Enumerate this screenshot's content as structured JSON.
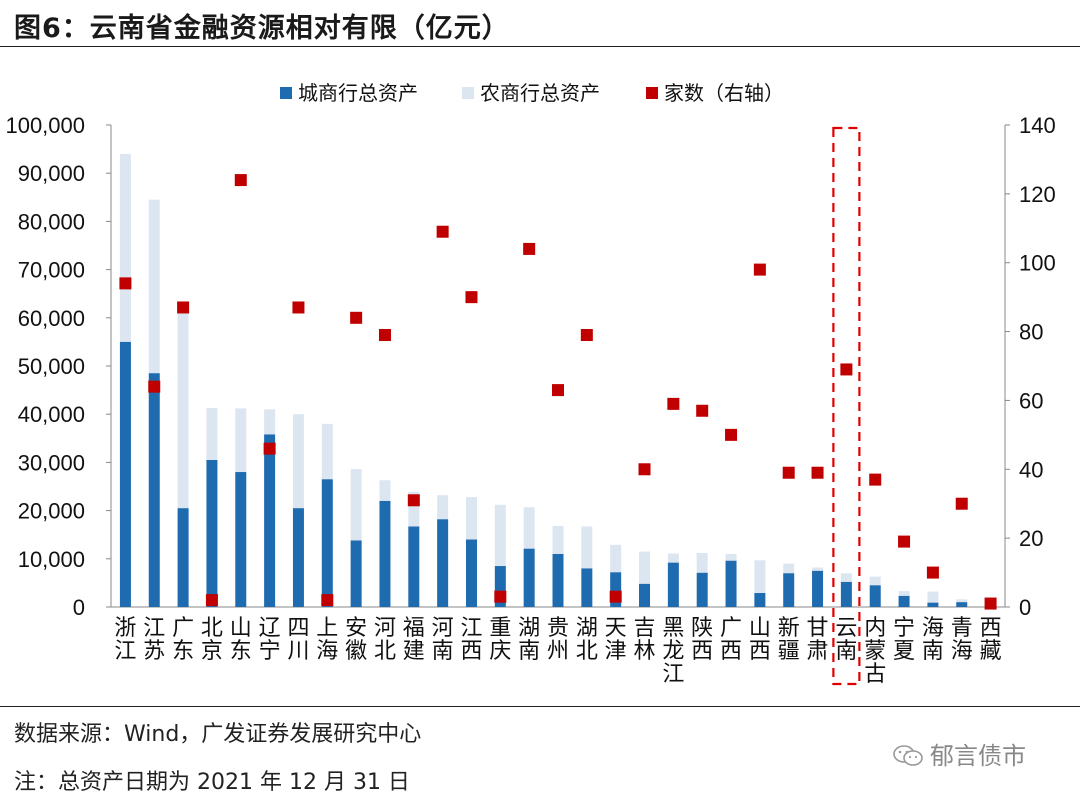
{
  "title": "图6：云南省金融资源相对有限（亿元）",
  "source": "数据来源：Wind，广发证券发展研究中心",
  "note": "注：总资产日期为 2021 年 12 月 31 日",
  "watermark": "郁言债市",
  "watermark_icon": "wechat-icon",
  "chart_data": {
    "type": "bar",
    "categories": [
      "浙江",
      "江苏",
      "广东",
      "北京",
      "山东",
      "辽宁",
      "四川",
      "上海",
      "安徽",
      "河北",
      "福建",
      "河南",
      "江西",
      "重庆",
      "湖南",
      "贵州",
      "湖北",
      "天津",
      "吉林",
      "黑龙江",
      "陕西",
      "广西",
      "山西",
      "新疆",
      "甘肃",
      "云南",
      "内蒙古",
      "宁夏",
      "海南",
      "青海",
      "西藏"
    ],
    "series": [
      {
        "name": "城商行总资产",
        "type": "stacked-bar",
        "axis": "left",
        "color": "#1f6bb0",
        "values": [
          55000,
          48500,
          20500,
          30500,
          28000,
          35800,
          20500,
          26500,
          13800,
          22000,
          16700,
          18200,
          14000,
          8500,
          12100,
          11000,
          8000,
          7200,
          4800,
          9200,
          7100,
          9600,
          2900,
          7000,
          7500,
          5200,
          4500,
          2300,
          900,
          1000,
          0
        ]
      },
      {
        "name": "农商行总资产",
        "type": "stacked-bar",
        "axis": "left",
        "color": "#dce6f1",
        "values": [
          39000,
          36000,
          40500,
          10800,
          13200,
          5200,
          19500,
          11500,
          14800,
          4300,
          7200,
          5000,
          8800,
          12700,
          8600,
          5800,
          8700,
          5700,
          6700,
          1900,
          4100,
          1400,
          6800,
          2000,
          700,
          1800,
          1800,
          1000,
          2300,
          600,
          0
        ]
      },
      {
        "name": "家数（右轴）",
        "type": "scatter",
        "axis": "right",
        "color": "#c00000",
        "values": [
          94,
          64,
          87,
          2,
          124,
          46,
          87,
          2,
          84,
          79,
          31,
          109,
          90,
          3,
          104,
          63,
          79,
          3,
          40,
          59,
          57,
          50,
          98,
          39,
          39,
          69,
          37,
          19,
          10,
          30,
          1
        ]
      }
    ],
    "y_left": {
      "min": 0,
      "max": 100000,
      "ticks": [
        "0",
        "10,000",
        "20,000",
        "30,000",
        "40,000",
        "50,000",
        "60,000",
        "70,000",
        "80,000",
        "90,000",
        "100,000"
      ]
    },
    "y_right": {
      "min": 0,
      "max": 140,
      "ticks": [
        "0",
        "20",
        "40",
        "60",
        "80",
        "100",
        "120",
        "140"
      ]
    },
    "legend_position": "top",
    "highlight_category": "云南",
    "highlight_color": "#e00000",
    "grid": false
  }
}
